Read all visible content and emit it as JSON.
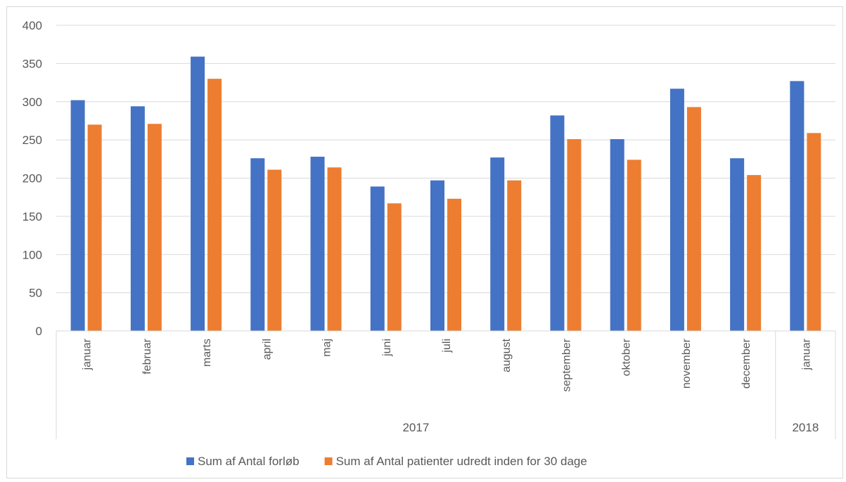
{
  "chart_data": {
    "type": "bar",
    "title": "",
    "xlabel": "",
    "ylabel": "",
    "ylim": [
      0,
      400
    ],
    "yticks": [
      0,
      50,
      100,
      150,
      200,
      250,
      300,
      350,
      400
    ],
    "grid": true,
    "legend_position": "bottom",
    "categories": [
      "januar",
      "februar",
      "marts",
      "april",
      "maj",
      "juni",
      "juli",
      "august",
      "september",
      "oktober",
      "november",
      "december",
      "januar"
    ],
    "groups": [
      {
        "label": "2017",
        "count": 12
      },
      {
        "label": "2018",
        "count": 1
      }
    ],
    "series": [
      {
        "name": "Sum af Antal forløb",
        "color": "#4472c4",
        "values": [
          302,
          294,
          359,
          226,
          228,
          189,
          197,
          227,
          282,
          251,
          317,
          226,
          327
        ]
      },
      {
        "name": "Sum af Antal patienter udredt inden for 30 dage",
        "color": "#ed7d31",
        "values": [
          270,
          271,
          330,
          211,
          214,
          167,
          173,
          197,
          251,
          224,
          293,
          204,
          259
        ]
      }
    ]
  }
}
